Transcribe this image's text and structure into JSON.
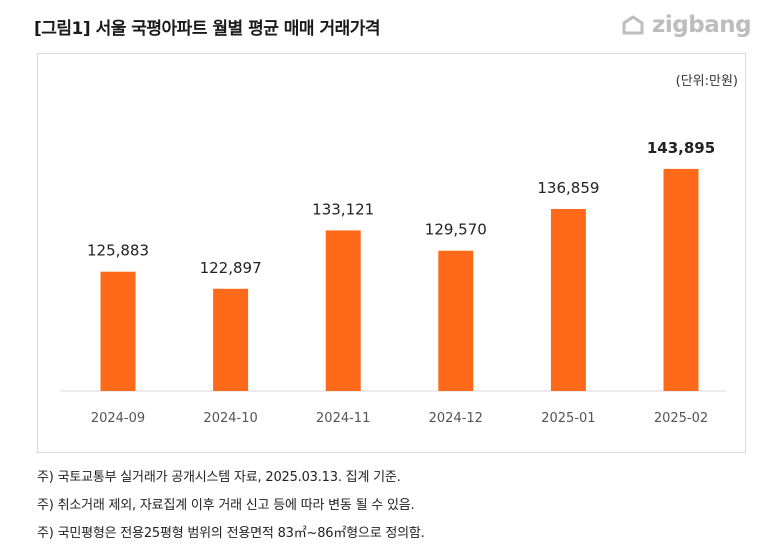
{
  "header": {
    "title": "[그림1] 서울 국평아파트 월별 평균 매매 거래가격",
    "brand": "zigbang",
    "brand_icon": "zigbang-logo-icon",
    "brand_color": "#bdbdbd"
  },
  "chart_data": {
    "type": "bar",
    "unit_label": "(단위:만원)",
    "categories": [
      "2024-09",
      "2024-10",
      "2024-11",
      "2024-12",
      "2025-01",
      "2025-02"
    ],
    "values": [
      125883,
      122897,
      133121,
      129570,
      136859,
      143895
    ],
    "value_labels": [
      "125,883",
      "122,897",
      "133,121",
      "129,570",
      "136,859",
      "143,895"
    ],
    "highlight_index": 5,
    "bar_color": "#ff6a1a",
    "ylim": [
      105000,
      150000
    ],
    "grid": false,
    "legend": "none",
    "title": "",
    "xlabel": "",
    "ylabel": ""
  },
  "notes": [
    "주) 국토교통부 실거래가 공개시스템 자료, 2025.03.13. 집계 기준.",
    "주) 취소거래 제외, 자료집계 이후 거래 신고 등에 따라 변동 될 수 있음.",
    "주) 국민평형은 전용25평형 범위의 전용면적 83㎡~86㎡형으로 정의함."
  ]
}
